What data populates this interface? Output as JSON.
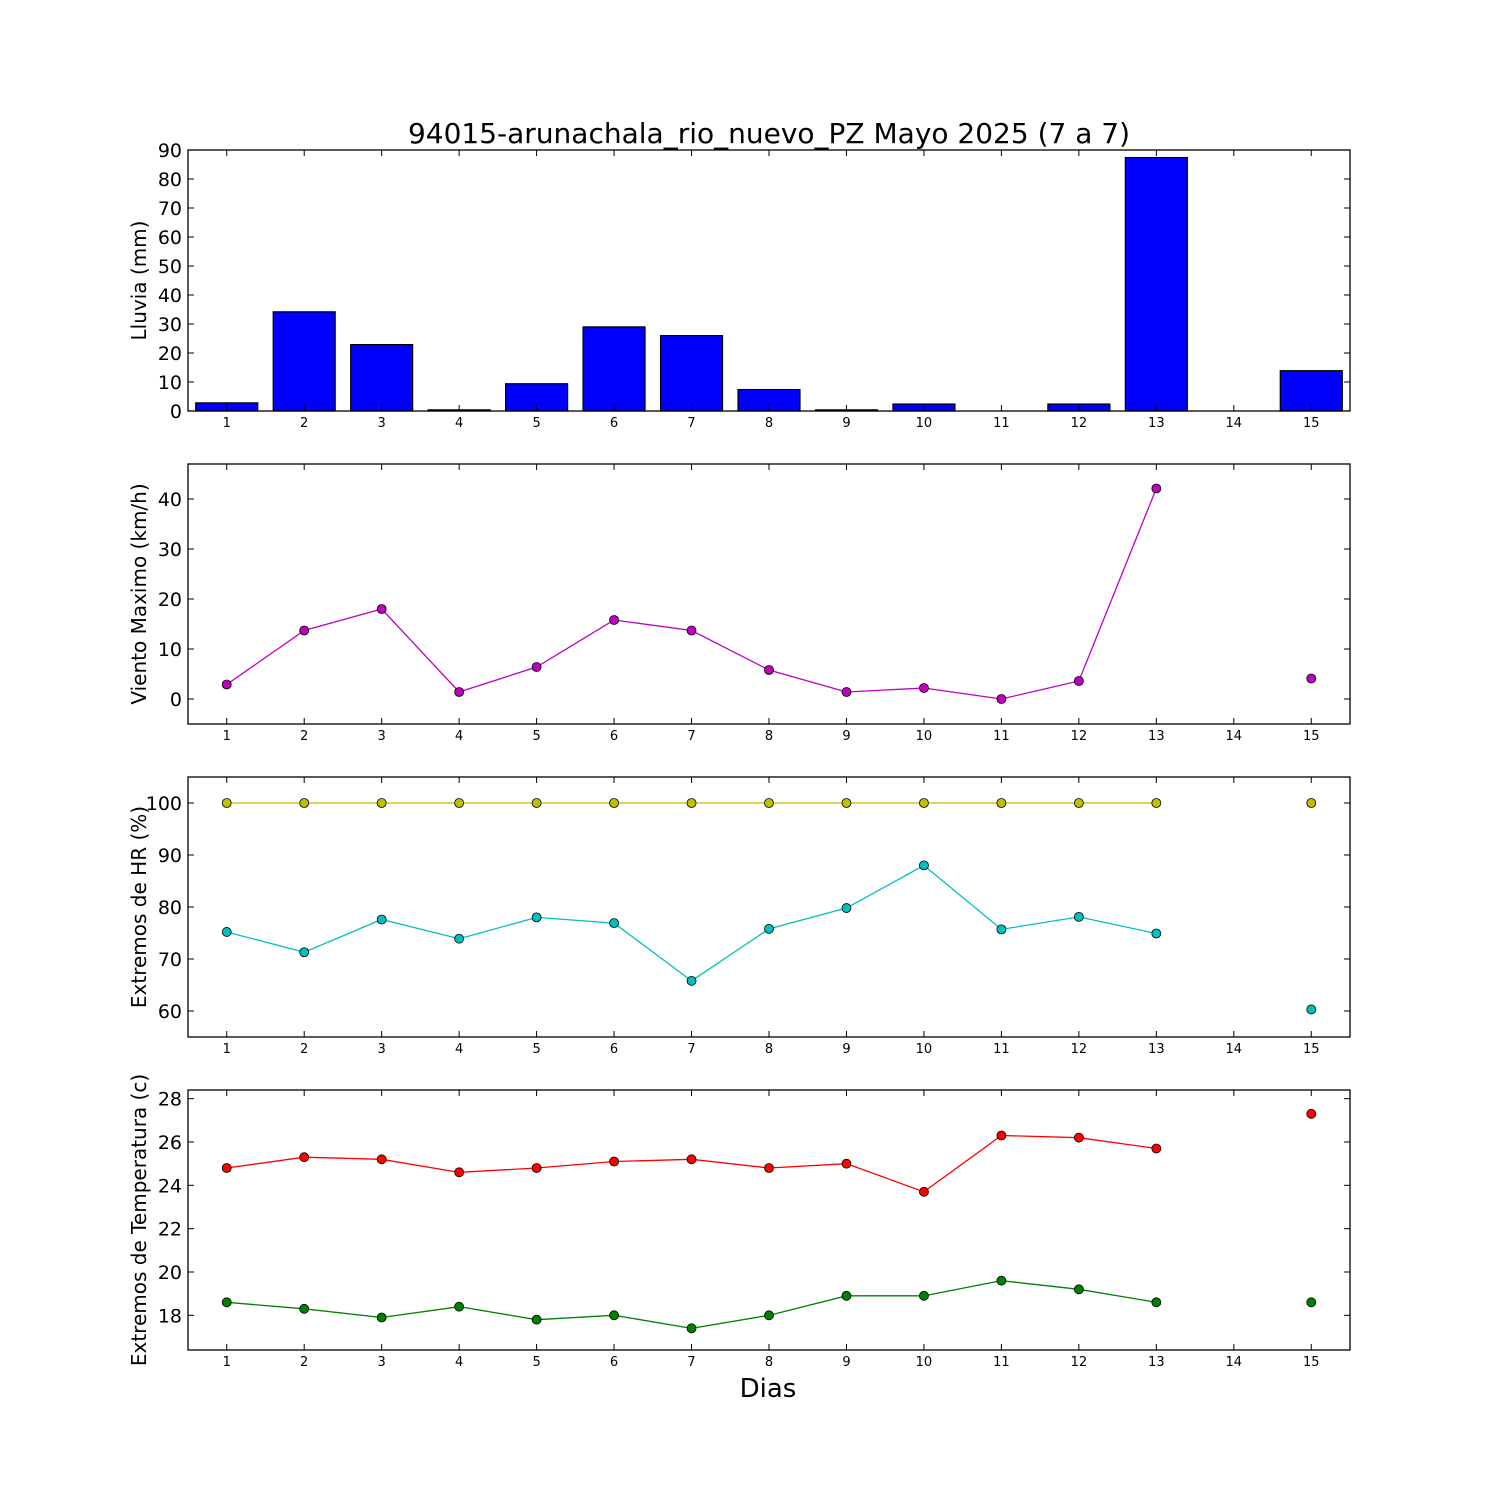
{
  "title": "94015-arunachala_rio_nuevo_PZ Mayo 2025  (7 a 7)",
  "xlabel": "Dias",
  "chart_data": [
    {
      "type": "bar",
      "ylabel": "Lluvia (mm)",
      "x": [
        1,
        2,
        3,
        4,
        5,
        6,
        7,
        8,
        9,
        10,
        11,
        12,
        13,
        14,
        15
      ],
      "xticks": [
        1,
        2,
        3,
        4,
        5,
        6,
        7,
        8,
        9,
        10,
        11,
        12,
        13,
        14,
        15
      ],
      "ylim": [
        0,
        90
      ],
      "yticks": [
        0,
        10,
        20,
        30,
        40,
        50,
        60,
        70,
        80,
        90
      ],
      "series": [
        {
          "color": "#0000ff",
          "values": [
            2.8,
            34.2,
            22.9,
            0.4,
            9.4,
            29.0,
            26.0,
            7.4,
            0.4,
            2.4,
            0.0,
            2.4,
            87.4,
            null,
            13.9
          ]
        }
      ]
    },
    {
      "type": "line",
      "ylabel": "Viento Maximo (km/h)",
      "x": [
        1,
        2,
        3,
        4,
        5,
        6,
        7,
        8,
        9,
        10,
        11,
        12,
        13,
        14,
        15
      ],
      "xticks": [
        1,
        2,
        3,
        4,
        5,
        6,
        7,
        8,
        9,
        10,
        11,
        12,
        13,
        14,
        15
      ],
      "ylim": [
        -5,
        47
      ],
      "yticks": [
        0,
        10,
        20,
        30,
        40
      ],
      "series": [
        {
          "color": "#bf00bf",
          "values": [
            2.9,
            13.7,
            18.0,
            1.4,
            6.4,
            15.8,
            13.7,
            5.8,
            1.4,
            2.2,
            0.0,
            3.6,
            42.1,
            null,
            4.1
          ]
        }
      ]
    },
    {
      "type": "line",
      "ylabel": "Extremos de HR (%)",
      "x": [
        1,
        2,
        3,
        4,
        5,
        6,
        7,
        8,
        9,
        10,
        11,
        12,
        13,
        14,
        15
      ],
      "xticks": [
        1,
        2,
        3,
        4,
        5,
        6,
        7,
        8,
        9,
        10,
        11,
        12,
        13,
        14,
        15
      ],
      "ylim": [
        55,
        105
      ],
      "yticks": [
        60,
        70,
        80,
        90,
        100
      ],
      "series": [
        {
          "color": "#bfbf00",
          "values": [
            100,
            100,
            100,
            100,
            100,
            100,
            100,
            100,
            100,
            100,
            100,
            100,
            100,
            null,
            100
          ]
        },
        {
          "color": "#00bfbf",
          "values": [
            75.2,
            71.3,
            77.6,
            73.9,
            78.0,
            76.9,
            65.8,
            75.8,
            79.8,
            88.0,
            75.7,
            78.1,
            74.9,
            null,
            60.3
          ]
        }
      ]
    },
    {
      "type": "line",
      "ylabel": "Extremos de Temperatura (c)",
      "x": [
        1,
        2,
        3,
        4,
        5,
        6,
        7,
        8,
        9,
        10,
        11,
        12,
        13,
        14,
        15
      ],
      "xticks": [
        1,
        2,
        3,
        4,
        5,
        6,
        7,
        8,
        9,
        10,
        11,
        12,
        13,
        14,
        15
      ],
      "ylim": [
        16.4,
        28.4
      ],
      "yticks": [
        18,
        20,
        22,
        24,
        26,
        28
      ],
      "series": [
        {
          "color": "#ff0000",
          "values": [
            24.8,
            25.3,
            25.2,
            24.6,
            24.8,
            25.1,
            25.2,
            24.8,
            25.0,
            23.7,
            26.3,
            26.2,
            25.7,
            null,
            27.3
          ]
        },
        {
          "color": "#008000",
          "values": [
            18.6,
            18.3,
            17.9,
            18.4,
            17.8,
            18.0,
            17.4,
            18.0,
            18.9,
            18.9,
            19.6,
            19.2,
            18.6,
            null,
            18.6
          ]
        }
      ]
    }
  ]
}
